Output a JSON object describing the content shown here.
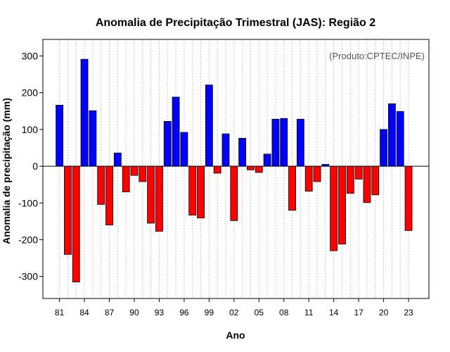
{
  "chart_data": {
    "type": "bar",
    "title": "Anomalia de Precipitação Trimestral (JAS): Região 2",
    "xlabel": "Ano",
    "ylabel": "Anomalia de precipitação (mm)",
    "credit": "(Produto:CPTEC/INPE)",
    "ylim": [
      -360,
      345
    ],
    "yticks": [
      300,
      200,
      100,
      0,
      -100,
      -200,
      -300
    ],
    "ytick_labels": [
      "300",
      "200",
      "100",
      "0",
      "-100",
      "-200",
      "-300"
    ],
    "xtick_labels": [
      "81",
      "84",
      "87",
      "90",
      "93",
      "96",
      "99",
      "02",
      "05",
      "08",
      "11",
      "14",
      "17",
      "20",
      "23"
    ],
    "grid": true,
    "positive_color": "#0000ff",
    "negative_color": "#ff0000",
    "categories": [
      "1981",
      "1982",
      "1983",
      "1984",
      "1985",
      "1986",
      "1987",
      "1988",
      "1989",
      "1990",
      "1991",
      "1992",
      "1993",
      "1994",
      "1995",
      "1996",
      "1997",
      "1998",
      "1999",
      "2000",
      "2001",
      "2002",
      "2003",
      "2004",
      "2005",
      "2006",
      "2007",
      "2008",
      "2009",
      "2010",
      "2011",
      "2012",
      "2013",
      "2014",
      "2015",
      "2016",
      "2017",
      "2018",
      "2019",
      "2020",
      "2021",
      "2022",
      "2023"
    ],
    "values": [
      166,
      -240,
      -315,
      291,
      151,
      -104,
      -160,
      36,
      -70,
      -25,
      -42,
      -155,
      -177,
      122,
      188,
      92,
      -133,
      -141,
      221,
      -19,
      88,
      -148,
      76,
      -10,
      -17,
      33,
      128,
      130,
      -120,
      128,
      -68,
      -42,
      5,
      -230,
      -212,
      -74,
      -35,
      -99,
      -78,
      100,
      170,
      149,
      -175
    ]
  }
}
